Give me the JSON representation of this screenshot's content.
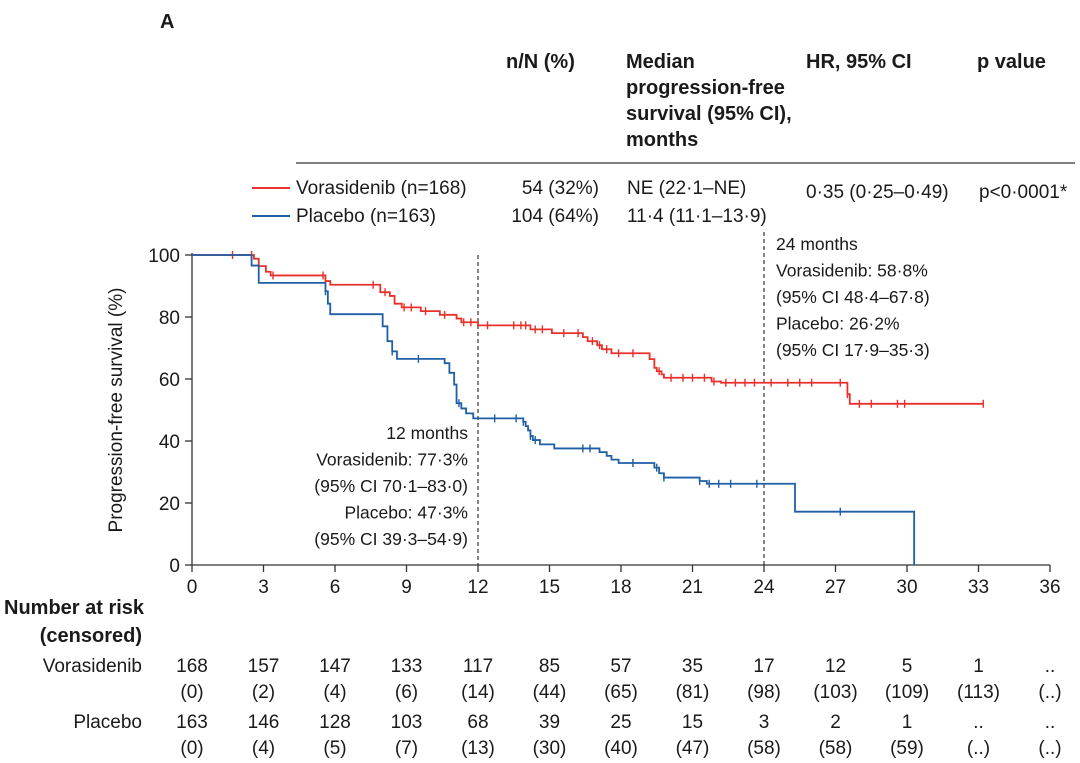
{
  "panel_label": "A",
  "table": {
    "headers": {
      "nN": "n/N (%)",
      "median": [
        "Median",
        "progression-free",
        "survival (95% CI),",
        "months"
      ],
      "hr": "HR, 95% CI",
      "p": "p value"
    },
    "rows": [
      {
        "name": "Vorasidenib (n=168)",
        "nN": "54 (32%)",
        "median": "NE (22·1–NE)"
      },
      {
        "name": "Placebo (n=163)",
        "nN": "104 (64%)",
        "median": "11·4 (11·1–13·9)"
      }
    ],
    "hr": "0·35 (0·25–0·49)",
    "p": "p<0·0001*"
  },
  "annotations": {
    "m12": [
      "12 months",
      "Vorasidenib: 77·3%",
      "(95% CI 70·1–83·0)",
      "Placebo: 47·3%",
      "(95% CI 39·3–54·9)"
    ],
    "m24": [
      "24 months",
      "Vorasidenib: 58·8%",
      "(95% CI 48·4–67·8)",
      "Placebo: 26·2%",
      "(95% CI 17·9–35·3)"
    ]
  },
  "risk_table": {
    "title": [
      "Number at risk",
      "(censored)"
    ],
    "rows": [
      {
        "label": "Vorasidenib",
        "counts": [
          "168",
          "157",
          "147",
          "133",
          "117",
          "85",
          "57",
          "35",
          "17",
          "12",
          "5",
          "1",
          ".."
        ],
        "censored": [
          "(0)",
          "(2)",
          "(4)",
          "(6)",
          "(14)",
          "(44)",
          "(65)",
          "(81)",
          "(98)",
          "(103)",
          "(109)",
          "(113)",
          "(..)"
        ]
      },
      {
        "label": "Placebo",
        "counts": [
          "163",
          "146",
          "128",
          "103",
          "68",
          "39",
          "25",
          "15",
          "3",
          "2",
          "1",
          "..",
          ".."
        ],
        "censored": [
          "(0)",
          "(4)",
          "(5)",
          "(7)",
          "(13)",
          "(30)",
          "(40)",
          "(47)",
          "(58)",
          "(58)",
          "(59)",
          "(..)",
          "(..)"
        ]
      }
    ]
  },
  "colors": {
    "vorasidenib": "#e8312a",
    "placebo": "#1f5fa6"
  },
  "chart_data": {
    "type": "line",
    "subtype": "kaplan-meier step",
    "ylabel": "Progression-free survival (%)",
    "xlabel": "",
    "xlim": [
      0,
      36
    ],
    "ylim": [
      0,
      100
    ],
    "xticks": [
      0,
      3,
      6,
      9,
      12,
      15,
      18,
      21,
      24,
      27,
      30,
      33,
      36
    ],
    "yticks": [
      0,
      20,
      40,
      60,
      80,
      100
    ],
    "reference_lines": [
      12,
      24
    ],
    "series": [
      {
        "name": "Vorasidenib",
        "steps": [
          [
            0,
            100
          ],
          [
            2.6,
            98.8
          ],
          [
            2.8,
            96.4
          ],
          [
            3.1,
            94.6
          ],
          [
            3.3,
            93.4
          ],
          [
            5.6,
            91.6
          ],
          [
            5.8,
            90.4
          ],
          [
            7.9,
            88
          ],
          [
            8.3,
            86.8
          ],
          [
            8.5,
            84.3
          ],
          [
            8.8,
            83.1
          ],
          [
            9.6,
            81.9
          ],
          [
            10.4,
            80.7
          ],
          [
            11.1,
            79.5
          ],
          [
            11.3,
            78.3
          ],
          [
            12,
            77.3
          ],
          [
            14.2,
            76
          ],
          [
            15.1,
            74.8
          ],
          [
            16.4,
            73.5
          ],
          [
            16.6,
            72.2
          ],
          [
            17,
            70.9
          ],
          [
            17.2,
            69.6
          ],
          [
            17.6,
            68.3
          ],
          [
            18.3,
            68.3
          ],
          [
            19.2,
            66.4
          ],
          [
            19.4,
            63.6
          ],
          [
            19.5,
            62.5
          ],
          [
            19.7,
            61.5
          ],
          [
            19.8,
            60.4
          ],
          [
            21.8,
            59.2
          ],
          [
            22.2,
            58.8
          ],
          [
            27.5,
            55.1
          ],
          [
            27.6,
            52
          ]
        ],
        "end": 33.2,
        "censor": [
          1.7,
          2.5,
          3.4,
          5.5,
          7.6,
          8.1,
          8.9,
          9.2,
          9.8,
          10.6,
          11.4,
          11.7,
          12.4,
          13.5,
          13.8,
          14,
          14.4,
          14.7,
          15.6,
          16.2,
          16.8,
          17.1,
          17.4,
          17.9,
          18.5,
          19.6,
          20.1,
          20.6,
          21,
          21.5,
          21.9,
          22.4,
          22.8,
          23.2,
          23.6,
          24.3,
          25,
          25.5,
          26,
          27.2,
          27.5,
          28,
          28.5,
          29.6,
          29.9,
          33.2
        ]
      },
      {
        "name": "Placebo",
        "steps": [
          [
            0,
            100
          ],
          [
            2.5,
            96.6
          ],
          [
            2.8,
            91
          ],
          [
            5.6,
            88.3
          ],
          [
            5.7,
            84.3
          ],
          [
            5.8,
            80.9
          ],
          [
            8,
            77
          ],
          [
            8.2,
            72.2
          ],
          [
            8.4,
            68.9
          ],
          [
            8.6,
            66.5
          ],
          [
            10.6,
            65.1
          ],
          [
            10.8,
            62
          ],
          [
            11,
            58.2
          ],
          [
            11.1,
            52.2
          ],
          [
            11.3,
            50.5
          ],
          [
            11.5,
            48.9
          ],
          [
            11.8,
            47.3
          ],
          [
            13.9,
            46.2
          ],
          [
            14,
            44.8
          ],
          [
            14.1,
            43.4
          ],
          [
            14.2,
            41.6
          ],
          [
            14.3,
            40.3
          ],
          [
            14.6,
            38.9
          ],
          [
            15.2,
            37.6
          ],
          [
            17.1,
            36.4
          ],
          [
            17.4,
            35.2
          ],
          [
            17.6,
            34
          ],
          [
            17.9,
            32.9
          ],
          [
            19.4,
            31.4
          ],
          [
            19.6,
            29.6
          ],
          [
            19.8,
            28.2
          ],
          [
            21.3,
            27.1
          ],
          [
            21.6,
            26.2
          ],
          [
            25.3,
            17.2
          ],
          [
            30.3,
            0
          ]
        ],
        "censor": [
          5.6,
          8.4,
          9.5,
          11.2,
          12.7,
          13.6,
          13.9,
          14.2,
          14.4,
          16.4,
          16.7,
          18.5,
          19.5,
          19.8,
          21.3,
          21.7,
          22.1,
          22.6,
          23.7,
          27.2
        ]
      }
    ]
  }
}
